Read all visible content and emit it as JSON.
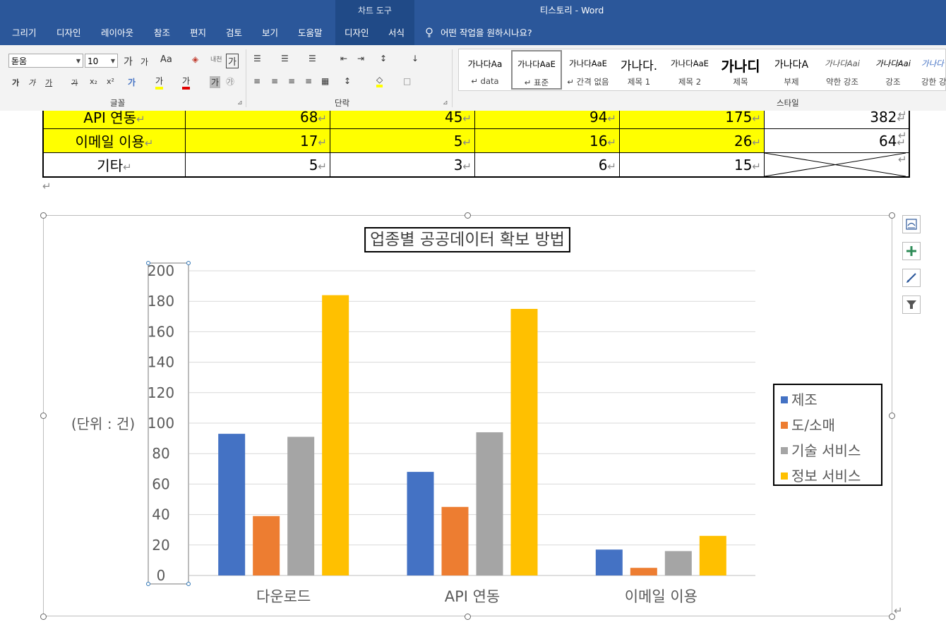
{
  "titlebar": {
    "context_tab": "차트 도구",
    "title": "티스토리  -  Word"
  },
  "menu": {
    "items": [
      "그리기",
      "디자인",
      "레이아웃",
      "참조",
      "편지",
      "검토",
      "보기",
      "도움말",
      "디자인",
      "서식"
    ],
    "tell_me": "어떤 작업을 원하시나요?"
  },
  "ribbon": {
    "font_name": "돋움",
    "font_size": "10",
    "group_font": "글꼴",
    "group_paragraph": "단락",
    "group_styles": "스타일",
    "font_row1": [
      "가",
      "가",
      "Aa",
      "◈",
      "내천",
      "가"
    ],
    "font_row2": [
      "가",
      "가",
      "가",
      "가",
      "x₂",
      "x²",
      "가",
      "가",
      "가",
      "가",
      "㉮"
    ],
    "para_row1": [
      "☰",
      "☰",
      "☰",
      "⇤",
      "⇥",
      "↕",
      "↓"
    ],
    "para_row2": [
      "≡",
      "≡",
      "≡",
      "≡",
      "▦",
      "↕",
      "◇",
      "□"
    ],
    "styles": [
      {
        "preview": "가나다Aa",
        "name": "↵ data"
      },
      {
        "preview": "가나다AaE",
        "name": "↵ 표준"
      },
      {
        "preview": "가나다AaE",
        "name": "↵ 간격 없음"
      },
      {
        "preview": "가나다.",
        "name": "제목 1"
      },
      {
        "preview": "가나다AaE",
        "name": "제목 2"
      },
      {
        "preview": "가나디",
        "name": "제목"
      },
      {
        "preview": "가나다A",
        "name": "부제"
      },
      {
        "preview": "가나다Aai",
        "name": "약한 강조"
      },
      {
        "preview": "가나다Aai",
        "name": "강조"
      },
      {
        "preview": "가나다",
        "name": "강한 강"
      }
    ]
  },
  "table": {
    "rows": [
      {
        "label": "API 연동",
        "values": [
          "68",
          "45",
          "94",
          "175",
          "382"
        ],
        "yellow": true
      },
      {
        "label": "이메일 이용",
        "values": [
          "17",
          "5",
          "16",
          "26",
          "64"
        ],
        "yellow": true
      },
      {
        "label": "기타",
        "values": [
          "5",
          "3",
          "6",
          "15",
          ""
        ],
        "yellow": false
      }
    ]
  },
  "chart_data": {
    "type": "bar",
    "title": "업종별 공공데이터 확보 방법",
    "ylabel": "(단위 : 건)",
    "xlabel": "",
    "categories": [
      "다운로드",
      "API 연동",
      "이메일 이용"
    ],
    "series": [
      {
        "name": "제조",
        "values": [
          93,
          68,
          17
        ],
        "color": "#4472c4"
      },
      {
        "name": "도/소매",
        "values": [
          39,
          45,
          5
        ],
        "color": "#ed7d31"
      },
      {
        "name": "기술 서비스",
        "values": [
          91,
          94,
          16
        ],
        "color": "#a5a5a5"
      },
      {
        "name": "정보 서비스",
        "values": [
          184,
          175,
          26
        ],
        "color": "#ffc000"
      }
    ],
    "ylim": [
      0,
      200
    ],
    "yticks": [
      "0",
      "20",
      "40",
      "60",
      "80",
      "100",
      "120",
      "140",
      "160",
      "180",
      "200"
    ],
    "grid": true,
    "legend_position": "right"
  },
  "chart_tools": [
    "layout-options-icon",
    "chart-elements-icon",
    "chart-styles-icon",
    "chart-filters-icon"
  ]
}
